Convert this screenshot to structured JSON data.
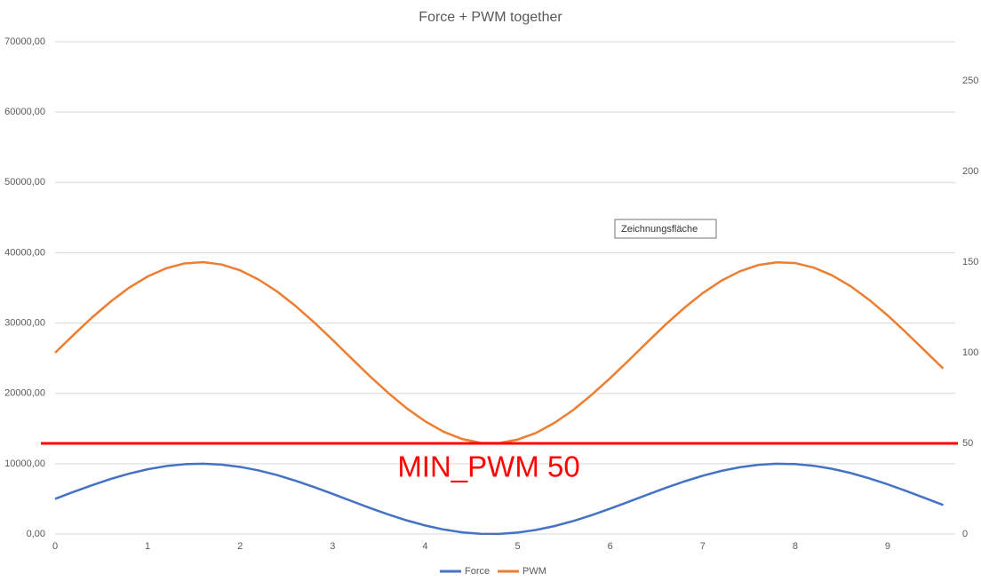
{
  "chart_data": {
    "type": "line",
    "title": "Force + PWM together",
    "x": [
      0,
      0.2,
      0.4,
      0.6,
      0.8,
      1,
      1.2,
      1.4,
      1.6,
      1.8,
      2,
      2.2,
      2.4,
      2.6,
      2.8,
      3,
      3.2,
      3.4,
      3.6,
      3.8,
      4,
      4.2,
      4.4,
      4.6,
      4.8,
      5,
      5.2,
      5.4,
      5.6,
      5.8,
      6,
      6.2,
      6.4,
      6.6,
      6.8,
      7,
      7.2,
      7.4,
      7.6,
      7.8,
      8,
      8.2,
      8.4,
      8.6,
      8.8,
      9,
      9.2,
      9.4,
      9.6
    ],
    "series": [
      {
        "name": "Force",
        "color": "#4472c4",
        "values": [
          5000,
          5994,
          6947,
          7823,
          8587,
          9207,
          9660,
          9927,
          9998,
          9869,
          9546,
          9042,
          8378,
          7578,
          6675,
          5706,
          4708,
          3723,
          2788,
          1941,
          1216,
          642,
          242,
          32,
          19,
          205,
          583,
          1136,
          1844,
          2677,
          3603,
          4585,
          5583,
          6558,
          7471,
          8285,
          8969,
          9494,
          9840,
          9993,
          9947,
          9704,
          9273,
          8672,
          7925,
          7061,
          6115,
          5124,
          4129
        ]
      },
      {
        "name": "PWM",
        "color": "#ed7d31",
        "axis": "y2",
        "values": [
          100,
          109.9,
          119.5,
          128.2,
          135.9,
          142.1,
          146.6,
          149.3,
          150,
          148.7,
          145.5,
          140.4,
          133.8,
          125.8,
          116.8,
          107.1,
          97.1,
          87.2,
          77.9,
          69.4,
          62.2,
          56.4,
          52.4,
          50.3,
          50.2,
          52.1,
          55.8,
          61.4,
          68.4,
          76.8,
          86,
          95.8,
          105.8,
          115.6,
          124.7,
          132.9,
          139.7,
          144.9,
          148.4,
          149.9,
          149.5,
          147,
          142.7,
          136.7,
          129.2,
          120.6,
          111.1,
          101.2,
          91.3
        ]
      }
    ],
    "xlim": [
      0,
      9.73
    ],
    "xticks": [
      0,
      1,
      2,
      3,
      4,
      5,
      6,
      7,
      8,
      9
    ],
    "ylim": [
      0,
      70000
    ],
    "yticks": [
      {
        "value": 0,
        "label": "0,00"
      },
      {
        "value": 10000,
        "label": "10000,00"
      },
      {
        "value": 20000,
        "label": "20000,00"
      },
      {
        "value": 30000,
        "label": "30000,00"
      },
      {
        "value": 40000,
        "label": "40000,00"
      },
      {
        "value": 50000,
        "label": "50000,00"
      },
      {
        "value": 60000,
        "label": "60000,00"
      },
      {
        "value": 70000,
        "label": "70000,00"
      }
    ],
    "y2lim": [
      0,
      271.6
    ],
    "y2ticks": [
      0,
      50,
      100,
      150,
      200,
      250
    ],
    "grid": true,
    "legend": "bottom",
    "reference_line": {
      "value": 50,
      "axis": "y2",
      "color": "#ff0000",
      "label": "MIN_PWM 50"
    },
    "tooltip": "Zeichnungsfläche"
  }
}
